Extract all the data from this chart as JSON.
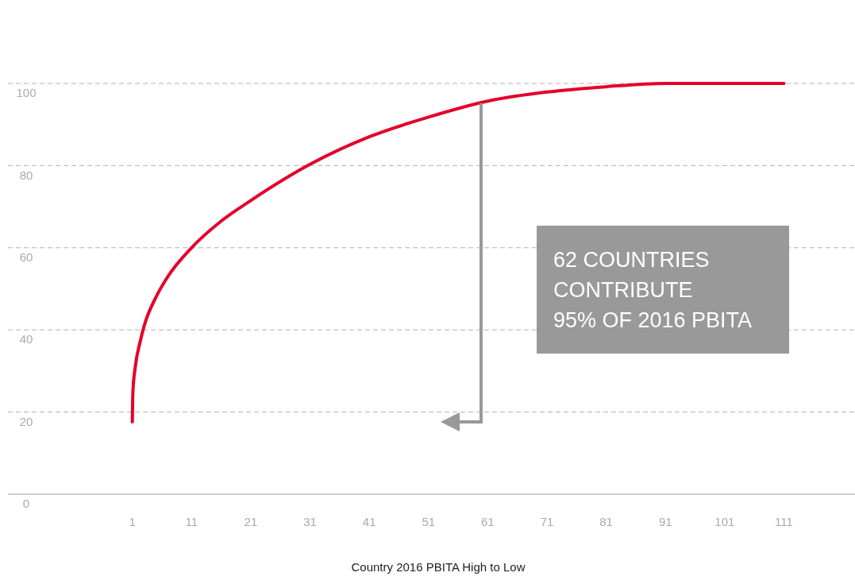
{
  "chart_data": {
    "type": "line",
    "xlabel": "Country 2016 PBITA High to Low",
    "x": [
      1,
      1.1,
      1.5,
      2.3,
      3,
      5,
      7,
      11,
      16,
      21,
      31,
      41,
      51,
      61,
      71,
      81,
      91,
      101,
      111
    ],
    "series": [
      {
        "color": "#e4002b",
        "values": [
          17.6,
          25,
          31,
          37,
          41,
          48,
          53,
          60,
          66.5,
          71.5,
          80.3,
          87,
          91.8,
          95.7,
          97.9,
          99.2,
          100,
          100,
          100
        ]
      }
    ],
    "xlim": [
      -20,
      123
    ],
    "xticks": [
      1,
      11,
      21,
      31,
      41,
      51,
      61,
      71,
      81,
      91,
      101,
      111
    ],
    "ylim": [
      0,
      100
    ],
    "yticks": [
      0,
      20,
      40,
      60,
      80,
      100
    ],
    "grid": "y",
    "marker": "none",
    "line_style": "solid",
    "annotations": [
      "62 COUNTRIES\nCONTRIBUTE\n95% OF 2016 PBITA"
    ]
  }
}
